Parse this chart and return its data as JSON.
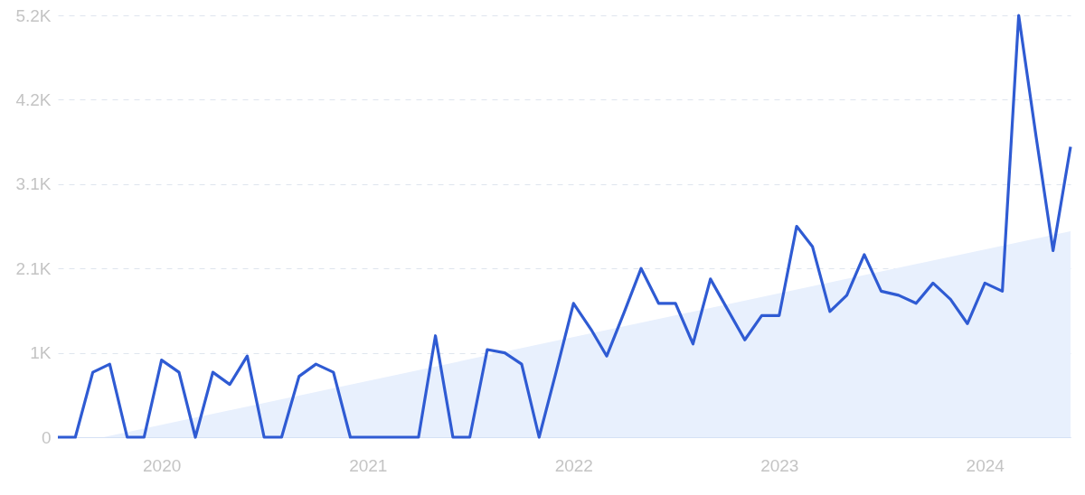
{
  "chart_data": {
    "type": "line",
    "x": [
      "2019-07",
      "2019-08",
      "2019-09",
      "2019-10",
      "2019-11",
      "2019-12",
      "2020-01",
      "2020-02",
      "2020-03",
      "2020-04",
      "2020-05",
      "2020-06",
      "2020-07",
      "2020-08",
      "2020-09",
      "2020-10",
      "2020-11",
      "2020-12",
      "2021-01",
      "2021-02",
      "2021-03",
      "2021-04",
      "2021-05",
      "2021-06",
      "2021-07",
      "2021-08",
      "2021-09",
      "2021-10",
      "2021-11",
      "2021-12",
      "2022-01",
      "2022-02",
      "2022-03",
      "2022-04",
      "2022-05",
      "2022-06",
      "2022-07",
      "2022-08",
      "2022-09",
      "2022-10",
      "2022-11",
      "2022-12",
      "2023-01",
      "2023-02",
      "2023-03",
      "2023-04",
      "2023-05",
      "2023-06",
      "2023-07",
      "2023-08",
      "2023-09",
      "2023-10",
      "2023-11",
      "2023-12",
      "2024-01",
      "2024-02",
      "2024-03",
      "2024-04",
      "2024-05",
      "2024-06"
    ],
    "series": [
      {
        "type": "area",
        "color": "#e8f0fd",
        "x": [
          "2019-09-20",
          "2024-06"
        ],
        "values": [
          0,
          2540
        ]
      },
      {
        "color": "#2f5bd3",
        "values": [
          0,
          0,
          800,
          900,
          0,
          0,
          950,
          800,
          0,
          800,
          650,
          1000,
          0,
          0,
          750,
          900,
          800,
          0,
          0,
          0,
          0,
          0,
          1250,
          0,
          0,
          1080,
          1040,
          900,
          0,
          800,
          1650,
          1330,
          1000,
          1540,
          2080,
          1650,
          1650,
          1150,
          1950,
          1580,
          1200,
          1500,
          1500,
          2600,
          2350,
          1550,
          1750,
          2250,
          1800,
          1750,
          1650,
          1900,
          1700,
          1400,
          1900,
          1800,
          5200,
          3700,
          2300,
          3580
        ]
      }
    ],
    "xlim": [
      "2019-07",
      "2024-06"
    ],
    "xticks": [
      "2020",
      "2021",
      "2022",
      "2023",
      "2024"
    ],
    "ylim": [
      0,
      5200
    ],
    "yticks": [
      0,
      {
        "value": 1040,
        "label": "1K"
      },
      {
        "value": 2080,
        "label": "2.1K"
      },
      {
        "value": 3120,
        "label": "3.1K"
      },
      {
        "value": 4160,
        "label": "4.2K"
      },
      {
        "value": 5200,
        "label": "5.2K"
      }
    ],
    "grid": "y"
  }
}
